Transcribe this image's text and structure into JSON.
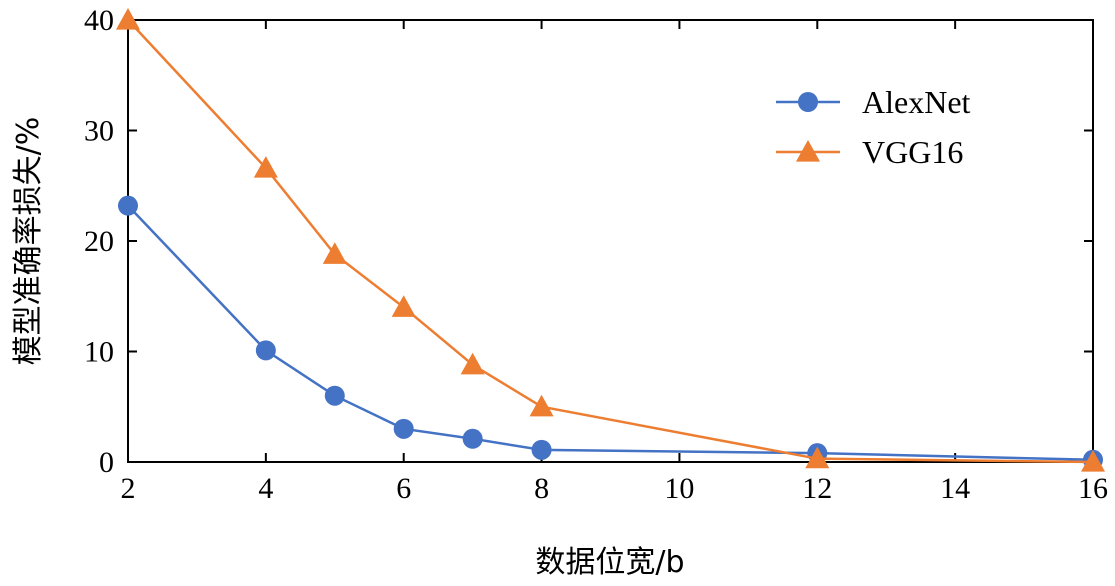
{
  "chart_data": {
    "type": "line",
    "title": "",
    "xlabel": "数据位宽/b",
    "ylabel": "模型准确率损失/%",
    "xlim": [
      2,
      16
    ],
    "ylim": [
      0,
      40
    ],
    "x_ticks": [
      2,
      4,
      6,
      8,
      10,
      12,
      14,
      16
    ],
    "y_ticks": [
      0,
      10,
      20,
      30,
      40
    ],
    "grid": false,
    "legend_position": "top-right",
    "series": [
      {
        "name": "AlexNet",
        "color": "#4472C4",
        "marker": "circle",
        "x": [
          2,
          4,
          5,
          6,
          7,
          8,
          12,
          16
        ],
        "y": [
          23.2,
          10.1,
          6.0,
          3.0,
          2.1,
          1.1,
          0.8,
          0.2
        ]
      },
      {
        "name": "VGG16",
        "color": "#ED7D31",
        "marker": "triangle",
        "x": [
          2,
          4,
          5,
          6,
          7,
          8,
          12,
          16
        ],
        "y": [
          40.0,
          26.6,
          18.8,
          14.0,
          8.8,
          5.0,
          0.3,
          0.0
        ]
      }
    ]
  }
}
